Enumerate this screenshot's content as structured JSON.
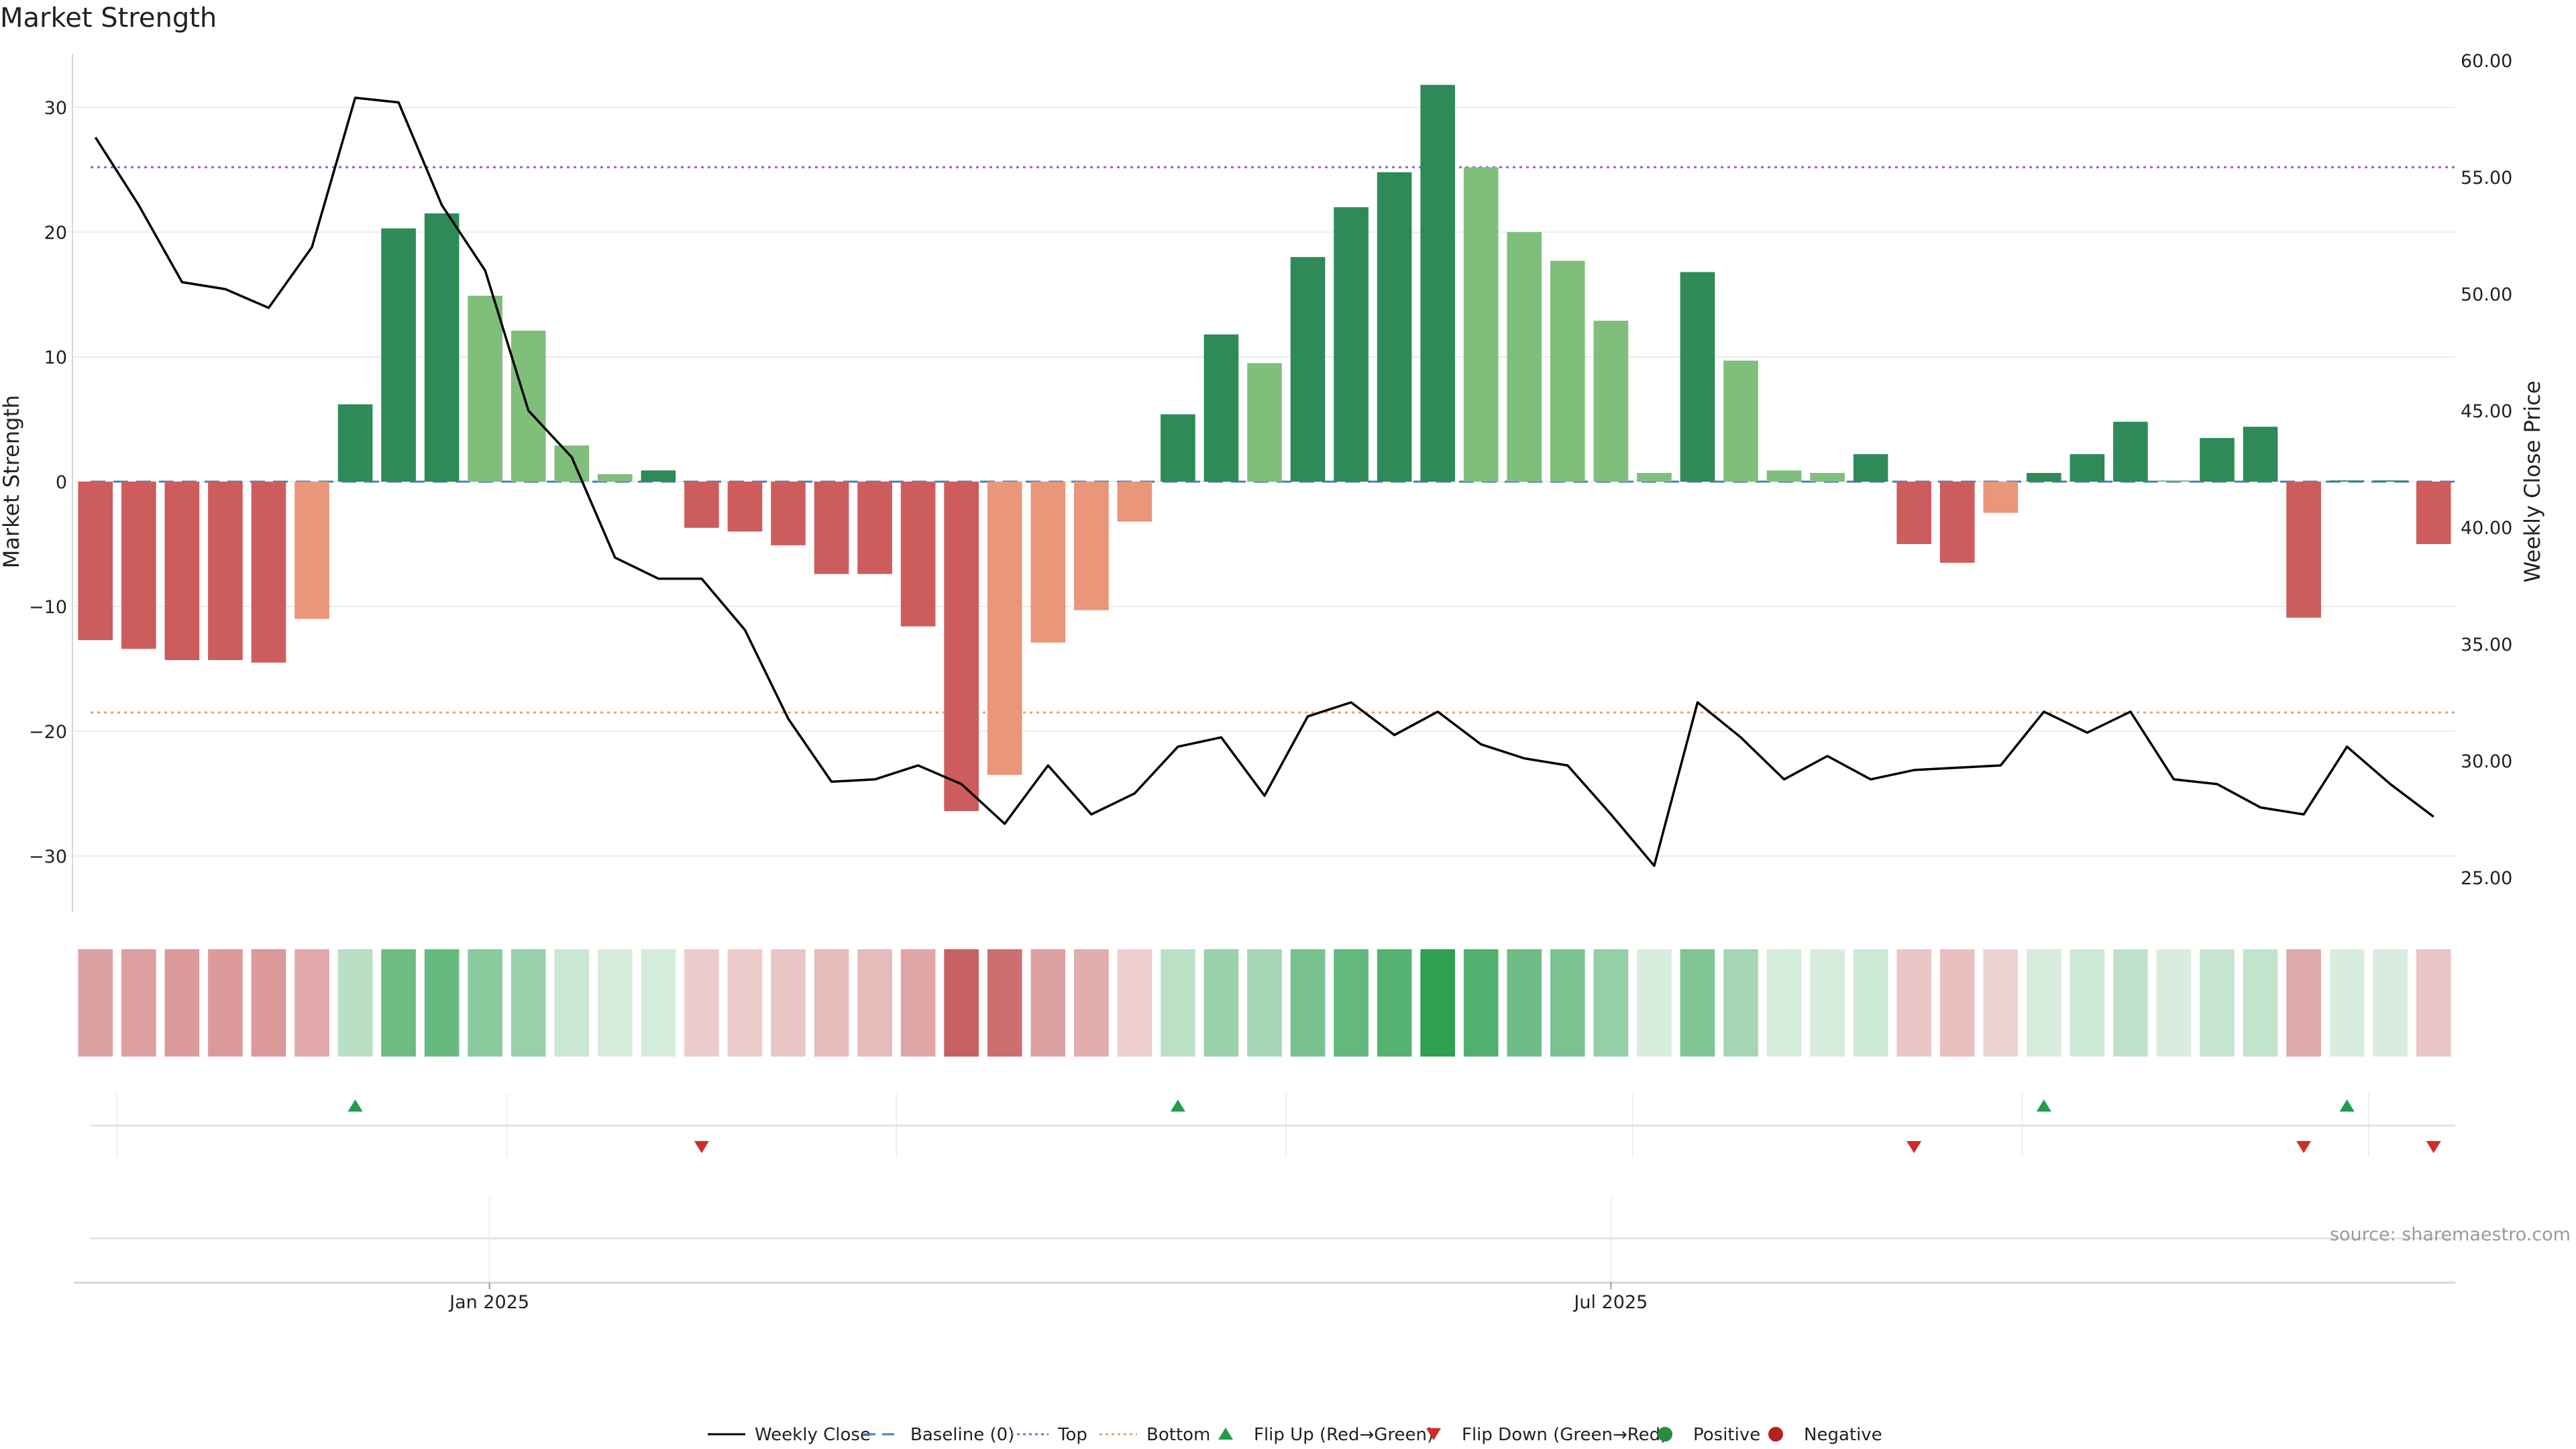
{
  "chart_data": {
    "type": "bar",
    "title": "Market Strength",
    "ylabel": "Market Strength",
    "y2label": "Weekly Close Price",
    "ylim": [
      -34,
      34
    ],
    "y2lim": [
      23.5,
      61
    ],
    "yticks": [
      30,
      20,
      10,
      0,
      -10,
      -20,
      -30
    ],
    "y2ticks": [
      "60.00",
      "55.00",
      "50.00",
      "45.00",
      "40.00",
      "35.00",
      "30.00",
      "25.00"
    ],
    "xticks": [
      {
        "label": "Jan 2025",
        "index": 9.6
      },
      {
        "label": "Jul 2025",
        "index": 35.5
      }
    ],
    "grid": true,
    "legend_position": "bottom-center",
    "top_level": 25.2,
    "bottom_level": -18.5,
    "baseline": 0,
    "series": [
      {
        "name": "Weekly Close",
        "kind": "line",
        "color": "#000000",
        "values": [
          56.7,
          53.8,
          50.5,
          50.2,
          49.4,
          52.0,
          58.4,
          58.2,
          53.8,
          51.0,
          45.0,
          43.0,
          38.7,
          37.8,
          37.8,
          35.6,
          31.8,
          29.1,
          29.2,
          29.8,
          29.0,
          27.3,
          29.8,
          27.7,
          28.6,
          30.6,
          31.0,
          28.5,
          31.9,
          32.5,
          31.1,
          32.1,
          30.7,
          30.1,
          29.8,
          27.7,
          25.5,
          32.5,
          31.0,
          29.2,
          30.2,
          29.2,
          29.6,
          29.7,
          29.8,
          32.1,
          31.2,
          32.1,
          29.2,
          29.0,
          28.0,
          27.7,
          30.6,
          29.0,
          27.6
        ]
      },
      {
        "name": "Market Strength",
        "kind": "bar",
        "values": [
          -12.7,
          -13.4,
          -14.3,
          -14.3,
          -14.5,
          -11.0,
          6.2,
          20.3,
          21.5,
          14.9,
          12.1,
          2.9,
          0.6,
          0.9,
          -3.7,
          -4.0,
          -5.1,
          -7.4,
          -7.4,
          -11.6,
          -26.4,
          -23.5,
          -12.9,
          -10.3,
          -3.2,
          5.4,
          11.8,
          9.5,
          18.0,
          22.0,
          24.8,
          31.8,
          25.2,
          20.0,
          17.7,
          12.9,
          0.7,
          16.8,
          9.7,
          0.9,
          0.7,
          2.2,
          -5.0,
          -6.5,
          -2.5,
          0.7,
          2.2,
          4.8,
          0.1,
          3.5,
          4.4,
          -10.9,
          0.1,
          0.1,
          -5.0
        ]
      },
      {
        "name": "Baseline (0)",
        "kind": "dashed",
        "color": "#4a7fb5"
      },
      {
        "name": "Top",
        "kind": "dotted",
        "color": "#9a5fc0"
      },
      {
        "name": "Bottom",
        "kind": "dotted",
        "color": "#e8a06a"
      },
      {
        "name": "Flip Up (Red→Green)",
        "kind": "marker",
        "color": "#1e9e4a",
        "indices": [
          6,
          25,
          45,
          52
        ]
      },
      {
        "name": "Flip Down (Green→Red)",
        "kind": "marker",
        "color": "#d22a2a",
        "indices": [
          14,
          42,
          51,
          54
        ]
      },
      {
        "name": "Positive",
        "kind": "marker",
        "color": "#2c8a3a"
      },
      {
        "name": "Negative",
        "kind": "marker",
        "color": "#b22222"
      }
    ],
    "colors": {
      "strong_pos": "#2e8b57",
      "weak_pos": "#7fbf7b",
      "strong_neg": "#cd5c5c",
      "weak_neg": "#e9967a"
    }
  },
  "source_text": "source: sharemaestro.com"
}
